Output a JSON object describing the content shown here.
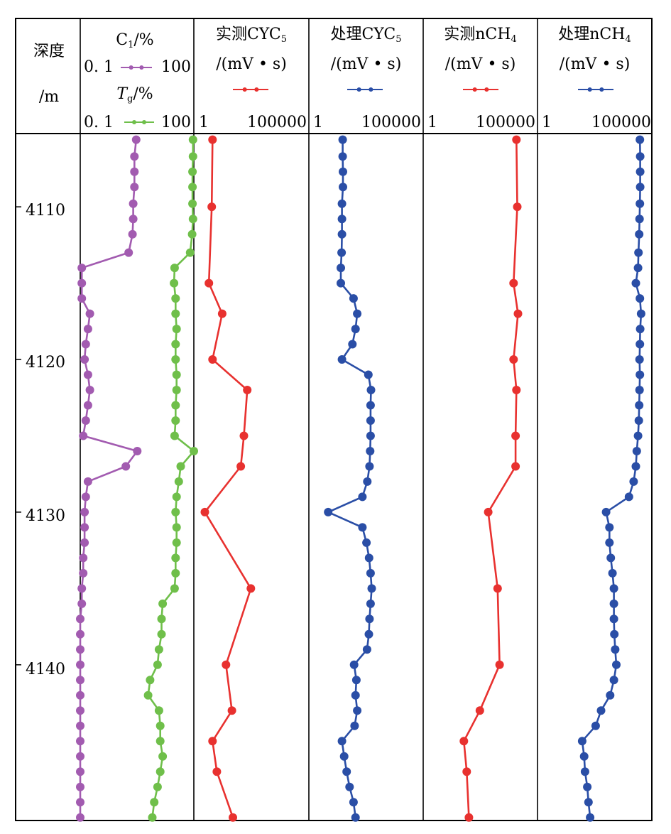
{
  "header": {
    "depth_title": "深度",
    "depth_unit": "/m",
    "c1_label": "C",
    "c1_sub": "1",
    "c1_unit": "/%",
    "tg_label": "T",
    "tg_sub": "g",
    "tg_unit": "/%",
    "c1_min": "0. 1",
    "c1_max": "100",
    "tg_min": "0. 1",
    "tg_max": "100",
    "track3_title": "实测CYC",
    "track3_sub": "5",
    "track4_title": "处理CYC",
    "track4_sub": "5",
    "track5_title": "实测nCH",
    "track5_sub": "4",
    "track6_title": "处理nCH",
    "track6_sub": "4",
    "unit": "/(mV • s)",
    "scale_min": "1",
    "scale_max": "100000"
  },
  "colors": {
    "purple": "#a25bb0",
    "green": "#6fbf4a",
    "red": "#e8312f",
    "blue": "#2a4ea6"
  },
  "chart_data": {
    "type": "line",
    "depth_ticks": [
      "4110",
      "4120",
      "4130",
      "4140"
    ],
    "depth_range": [
      4105.2,
      4150.2
    ],
    "series": [
      {
        "name": "C1",
        "track": 1,
        "color": "purple",
        "scale": "log",
        "range": [
          0.1,
          100
        ],
        "points": [
          [
            4105.6,
            3.0
          ],
          [
            4106.7,
            2.7
          ],
          [
            4107.7,
            2.7
          ],
          [
            4108.7,
            2.7
          ],
          [
            4109.8,
            2.5
          ],
          [
            4110.8,
            2.5
          ],
          [
            4111.8,
            2.4
          ],
          [
            4113,
            1.9
          ],
          [
            4114,
            0.11
          ],
          [
            4115,
            0.11
          ],
          [
            4116,
            0.11
          ],
          [
            4117,
            0.18
          ],
          [
            4118,
            0.16
          ],
          [
            4119,
            0.14
          ],
          [
            4120,
            0.13
          ],
          [
            4121,
            0.16
          ],
          [
            4122,
            0.18
          ],
          [
            4123,
            0.16
          ],
          [
            4124,
            0.14
          ],
          [
            4125,
            0.12
          ],
          [
            4126,
            3.2
          ],
          [
            4127,
            1.6
          ],
          [
            4128,
            0.16
          ],
          [
            4129,
            0.14
          ],
          [
            4130,
            0.13
          ],
          [
            4131,
            0.13
          ],
          [
            4132,
            0.13
          ],
          [
            4133,
            0.12
          ],
          [
            4134,
            0.12
          ],
          [
            4135,
            0.11
          ],
          [
            4136,
            0.11
          ],
          [
            4137,
            0.1
          ],
          [
            4138,
            0.1
          ],
          [
            4139,
            0.1
          ],
          [
            4140,
            0.1
          ],
          [
            4141,
            0.1
          ],
          [
            4142,
            0.1
          ],
          [
            4143,
            0.1
          ],
          [
            4144,
            0.1
          ],
          [
            4145,
            0.1
          ],
          [
            4146,
            0.1
          ],
          [
            4147,
            0.1
          ],
          [
            4148,
            0.1
          ],
          [
            4149,
            0.1
          ],
          [
            4150,
            0.1
          ]
        ]
      },
      {
        "name": "Tg",
        "track": 1,
        "color": "green",
        "scale": "log",
        "range": [
          0.1,
          100
        ],
        "points": [
          [
            4105.6,
            95
          ],
          [
            4106.7,
            95
          ],
          [
            4107.7,
            92
          ],
          [
            4108.7,
            92
          ],
          [
            4109.8,
            92
          ],
          [
            4110.8,
            95
          ],
          [
            4111.8,
            90
          ],
          [
            4113,
            80
          ],
          [
            4114,
            31
          ],
          [
            4115,
            30
          ],
          [
            4116,
            33
          ],
          [
            4117,
            33
          ],
          [
            4118,
            35
          ],
          [
            4119,
            33
          ],
          [
            4120,
            33
          ],
          [
            4121,
            35
          ],
          [
            4122,
            35
          ],
          [
            4123,
            33
          ],
          [
            4124,
            33
          ],
          [
            4125,
            31
          ],
          [
            4126,
            100
          ],
          [
            4127,
            45
          ],
          [
            4128,
            40
          ],
          [
            4129,
            35
          ],
          [
            4130,
            33
          ],
          [
            4131,
            35
          ],
          [
            4132,
            35
          ],
          [
            4133,
            33
          ],
          [
            4134,
            33
          ],
          [
            4135,
            31
          ],
          [
            4136,
            15
          ],
          [
            4137,
            14
          ],
          [
            4138,
            14
          ],
          [
            4139,
            12
          ],
          [
            4140,
            11
          ],
          [
            4141,
            7
          ],
          [
            4142,
            6.2
          ],
          [
            4143,
            12
          ],
          [
            4144,
            13
          ],
          [
            4145,
            13
          ],
          [
            4146,
            15
          ],
          [
            4147,
            13
          ],
          [
            4148,
            11
          ],
          [
            4149,
            9
          ],
          [
            4150,
            8
          ]
        ]
      },
      {
        "name": "实测CYC5",
        "track": 2,
        "color": "red",
        "scale": "log",
        "range": [
          1,
          100000
        ],
        "points": [
          [
            4105.6,
            6.5
          ],
          [
            4110,
            6
          ],
          [
            4115,
            4.5
          ],
          [
            4117,
            17
          ],
          [
            4120,
            6.5
          ],
          [
            4122,
            210
          ],
          [
            4125,
            150
          ],
          [
            4127,
            110
          ],
          [
            4130,
            3
          ],
          [
            4135,
            300
          ],
          [
            4140,
            25
          ],
          [
            4143,
            45
          ],
          [
            4145,
            6.5
          ],
          [
            4147,
            10
          ],
          [
            4150,
            50
          ]
        ]
      },
      {
        "name": "处理CYC5",
        "track": 3,
        "color": "blue",
        "scale": "log",
        "range": [
          1,
          100000
        ],
        "points": [
          [
            4105.6,
            30
          ],
          [
            4106.7,
            30
          ],
          [
            4107.7,
            31
          ],
          [
            4108.7,
            31
          ],
          [
            4109.8,
            28
          ],
          [
            4110.8,
            28
          ],
          [
            4111.8,
            28
          ],
          [
            4113,
            27
          ],
          [
            4114,
            25
          ],
          [
            4115,
            25
          ],
          [
            4116,
            90
          ],
          [
            4117,
            130
          ],
          [
            4118,
            110
          ],
          [
            4119,
            80
          ],
          [
            4120,
            28
          ],
          [
            4121,
            400
          ],
          [
            4122,
            520
          ],
          [
            4123,
            500
          ],
          [
            4124,
            500
          ],
          [
            4125,
            500
          ],
          [
            4126,
            480
          ],
          [
            4127,
            450
          ],
          [
            4128,
            360
          ],
          [
            4129,
            220
          ],
          [
            4130,
            7
          ],
          [
            4131,
            220
          ],
          [
            4132,
            330
          ],
          [
            4133,
            430
          ],
          [
            4134,
            500
          ],
          [
            4135,
            560
          ],
          [
            4136,
            500
          ],
          [
            4137,
            450
          ],
          [
            4138,
            420
          ],
          [
            4139,
            350
          ],
          [
            4140,
            95
          ],
          [
            4141,
            120
          ],
          [
            4142,
            110
          ],
          [
            4143,
            130
          ],
          [
            4144,
            100
          ],
          [
            4145,
            28
          ],
          [
            4146,
            35
          ],
          [
            4147,
            45
          ],
          [
            4148,
            60
          ],
          [
            4149,
            90
          ],
          [
            4150,
            110
          ]
        ]
      },
      {
        "name": "实测nCH4",
        "track": 4,
        "color": "red",
        "scale": "log",
        "range": [
          1,
          100000
        ],
        "points": [
          [
            4105.6,
            12000
          ],
          [
            4110,
            13000
          ],
          [
            4115,
            9000
          ],
          [
            4117,
            14000
          ],
          [
            4120,
            9000
          ],
          [
            4122,
            12000
          ],
          [
            4125,
            11000
          ],
          [
            4127,
            11000
          ],
          [
            4130,
            700
          ],
          [
            4135,
            1800
          ],
          [
            4140,
            2200
          ],
          [
            4143,
            300
          ],
          [
            4145,
            60
          ],
          [
            4147,
            80
          ],
          [
            4150,
            100
          ]
        ]
      },
      {
        "name": "处理nCH4",
        "track": 5,
        "color": "blue",
        "scale": "log",
        "range": [
          1,
          100000
        ],
        "points": [
          [
            4105.6,
            30000
          ],
          [
            4106.7,
            31000
          ],
          [
            4107.7,
            31000
          ],
          [
            4108.7,
            31000
          ],
          [
            4109.8,
            30000
          ],
          [
            4110.8,
            29000
          ],
          [
            4111.8,
            28000
          ],
          [
            4113,
            26000
          ],
          [
            4114,
            25000
          ],
          [
            4115,
            20000
          ],
          [
            4116,
            30000
          ],
          [
            4117,
            34000
          ],
          [
            4118,
            31000
          ],
          [
            4119,
            30000
          ],
          [
            4120,
            29000
          ],
          [
            4121,
            30000
          ],
          [
            4122,
            29000
          ],
          [
            4123,
            28000
          ],
          [
            4124,
            27000
          ],
          [
            4125,
            25000
          ],
          [
            4126,
            22000
          ],
          [
            4127,
            20000
          ],
          [
            4128,
            16000
          ],
          [
            4129,
            10000
          ],
          [
            4130,
            1000
          ],
          [
            4131,
            1400
          ],
          [
            4132,
            1400
          ],
          [
            4133,
            1600
          ],
          [
            4134,
            1900
          ],
          [
            4135,
            2200
          ],
          [
            4136,
            2200
          ],
          [
            4137,
            2200
          ],
          [
            4138,
            2300
          ],
          [
            4139,
            2500
          ],
          [
            4140,
            2800
          ],
          [
            4141,
            2200
          ],
          [
            4142,
            1500
          ],
          [
            4143,
            600
          ],
          [
            4144,
            350
          ],
          [
            4145,
            90
          ],
          [
            4146,
            110
          ],
          [
            4147,
            120
          ],
          [
            4148,
            150
          ],
          [
            4149,
            170
          ],
          [
            4150,
            200
          ]
        ]
      }
    ]
  }
}
